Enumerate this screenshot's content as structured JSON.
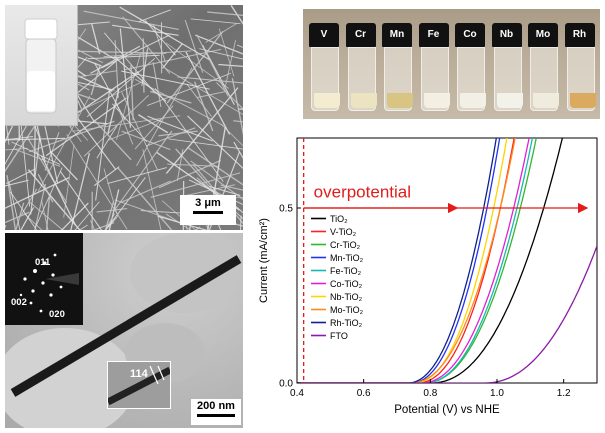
{
  "sem": {
    "scale_bar": "3 μm"
  },
  "tem": {
    "saed_labels": [
      "011",
      "002",
      "020"
    ],
    "hrtem_label": "114",
    "scale_bar": "200 nm"
  },
  "vials": {
    "labels": [
      "V",
      "Cr",
      "Mn",
      "Fe",
      "Co",
      "Nb",
      "Mo",
      "Rh"
    ],
    "powder_colors": [
      "#f4ecd0",
      "#ece3c0",
      "#d9c583",
      "#f3f0e3",
      "#f1efe6",
      "#f2f1ea",
      "#efebdd",
      "#d9aa5f"
    ]
  },
  "chart_data": {
    "type": "line",
    "xlabel": "Potential (V) vs NHE",
    "ylabel": "Current (mA/cm²)",
    "xlim": [
      0.4,
      1.3
    ],
    "ylim": [
      0,
      0.7
    ],
    "xticks": [
      "0.4",
      "0.6",
      "0.8",
      "1.0",
      "1.2"
    ],
    "yticks": [
      "0.0",
      "0.5"
    ],
    "annotation": "overpotential",
    "reference_line_x": 0.42,
    "arrow_y": 0.5,
    "arrow_end_x": 1.27,
    "legend": [
      "TiO₂",
      "V-TiO₂",
      "Cr-TiO₂",
      "Mn-TiO₂",
      "Fe-TiO₂",
      "Co-TiO₂",
      "Nb-TiO₂",
      "Mo-TiO₂",
      "Rh-TiO₂",
      "FTO"
    ],
    "series": [
      {
        "name": "TiO₂",
        "color": "#000000",
        "onset": 0.8,
        "slope": 0.34
      },
      {
        "name": "V-TiO₂",
        "color": "#ff2020",
        "onset": 0.76,
        "slope": 0.25
      },
      {
        "name": "Cr-TiO₂",
        "color": "#2fb82f",
        "onset": 0.78,
        "slope": 0.29
      },
      {
        "name": "Mn-TiO₂",
        "color": "#2233ee",
        "onset": 0.74,
        "slope": 0.23
      },
      {
        "name": "Fe-TiO₂",
        "color": "#18b8b0",
        "onset": 0.78,
        "slope": 0.28
      },
      {
        "name": "Co-TiO₂",
        "color": "#e020d8",
        "onset": 0.77,
        "slope": 0.28
      },
      {
        "name": "Nb-TiO₂",
        "color": "#ffd400",
        "onset": 0.75,
        "slope": 0.24
      },
      {
        "name": "Mo-TiO₂",
        "color": "#ff8c1a",
        "onset": 0.74,
        "slope": 0.27
      },
      {
        "name": "Rh-TiO₂",
        "color": "#102090",
        "onset": 0.73,
        "slope": 0.23
      },
      {
        "name": "FTO",
        "color": "#8a1aa8",
        "onset": 0.96,
        "slope": 0.38
      }
    ]
  }
}
